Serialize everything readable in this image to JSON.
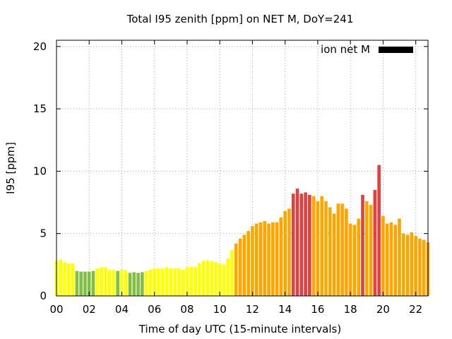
{
  "chart_data": {
    "type": "bar",
    "title": "Total I95 zenith [ppm] on NET M, DoY=241",
    "xlabel": "Time of day UTC (15-minute intervals)",
    "ylabel": "I95 [ppm]",
    "xlim": [
      0,
      22.75
    ],
    "ylim": [
      0,
      20.5
    ],
    "xticks": [
      0,
      2,
      4,
      6,
      8,
      10,
      12,
      14,
      16,
      18,
      20,
      22
    ],
    "xtick_labels": [
      "00",
      "02",
      "04",
      "06",
      "08",
      "10",
      "12",
      "14",
      "16",
      "18",
      "20",
      "22"
    ],
    "yticks": [
      0,
      5,
      10,
      15,
      20
    ],
    "ytick_labels": [
      "0",
      "5",
      "10",
      "15",
      "20"
    ],
    "grid": true,
    "legend": {
      "label": "ion net M",
      "color": "#000000",
      "position": "top-right"
    },
    "bar_width_hours": 0.2,
    "colors": {
      "yellow": "#ffff00",
      "green": "#80c040",
      "orange": "#ffa500",
      "red": "#e04040"
    },
    "x": [
      0.0,
      0.25,
      0.5,
      0.75,
      1.0,
      1.25,
      1.5,
      1.75,
      2.0,
      2.25,
      2.5,
      2.75,
      3.0,
      3.25,
      3.5,
      3.75,
      4.0,
      4.25,
      4.5,
      4.75,
      5.0,
      5.25,
      5.5,
      5.75,
      6.0,
      6.25,
      6.5,
      6.75,
      7.0,
      7.25,
      7.5,
      7.75,
      8.0,
      8.25,
      8.5,
      8.75,
      9.0,
      9.25,
      9.5,
      9.75,
      10.0,
      10.25,
      10.5,
      10.75,
      11.0,
      11.25,
      11.5,
      11.75,
      12.0,
      12.25,
      12.5,
      12.75,
      13.0,
      13.25,
      13.5,
      13.75,
      14.0,
      14.25,
      14.5,
      14.75,
      15.0,
      15.25,
      15.5,
      15.75,
      16.0,
      16.25,
      16.5,
      16.75,
      17.0,
      17.25,
      17.5,
      17.75,
      18.0,
      18.25,
      18.5,
      18.75,
      19.0,
      19.25,
      19.5,
      19.75,
      20.0,
      20.25,
      20.5,
      20.75,
      21.0,
      21.25,
      21.5,
      21.75,
      22.0,
      22.25,
      22.5,
      22.75
    ],
    "values": [
      2.8,
      2.9,
      2.7,
      2.6,
      2.6,
      2.0,
      1.95,
      1.95,
      1.95,
      2.0,
      2.2,
      2.3,
      2.3,
      2.1,
      2.1,
      2.0,
      2.1,
      2.05,
      1.85,
      1.9,
      1.85,
      1.9,
      2.0,
      2.1,
      2.2,
      2.2,
      2.2,
      2.3,
      2.2,
      2.2,
      2.2,
      2.1,
      2.3,
      2.3,
      2.3,
      2.6,
      2.8,
      2.85,
      2.8,
      2.7,
      2.6,
      2.5,
      3.0,
      3.7,
      4.2,
      4.6,
      4.9,
      5.2,
      5.6,
      5.8,
      5.9,
      6.0,
      5.8,
      5.9,
      5.9,
      6.3,
      6.8,
      7.0,
      8.2,
      8.6,
      8.2,
      8.3,
      8.1,
      8.0,
      7.6,
      8.0,
      7.6,
      7.1,
      6.6,
      7.4,
      7.4,
      7.0,
      5.8,
      5.7,
      6.2,
      8.1,
      7.6,
      7.3,
      8.5,
      10.5,
      6.4,
      5.8,
      5.9,
      5.7,
      6.2,
      5.0,
      4.9,
      5.1,
      4.8,
      4.6,
      4.5,
      4.3
    ],
    "bar_colors": [
      "yellow",
      "yellow",
      "yellow",
      "yellow",
      "yellow",
      "green",
      "green",
      "green",
      "green",
      "green",
      "yellow",
      "yellow",
      "yellow",
      "yellow",
      "yellow",
      "green",
      "yellow",
      "yellow",
      "green",
      "green",
      "green",
      "green",
      "yellow",
      "yellow",
      "yellow",
      "yellow",
      "yellow",
      "yellow",
      "yellow",
      "yellow",
      "yellow",
      "yellow",
      "yellow",
      "yellow",
      "yellow",
      "yellow",
      "yellow",
      "yellow",
      "yellow",
      "yellow",
      "yellow",
      "yellow",
      "yellow",
      "yellow",
      "orange",
      "orange",
      "orange",
      "orange",
      "orange",
      "orange",
      "orange",
      "orange",
      "orange",
      "orange",
      "orange",
      "orange",
      "orange",
      "orange",
      "red",
      "red",
      "red",
      "red",
      "red",
      "orange",
      "orange",
      "orange",
      "orange",
      "orange",
      "orange",
      "orange",
      "orange",
      "orange",
      "orange",
      "orange",
      "orange",
      "red",
      "orange",
      "orange",
      "red",
      "red",
      "orange",
      "orange",
      "orange",
      "orange",
      "orange",
      "orange",
      "orange",
      "orange",
      "orange",
      "orange",
      "orange",
      "orange"
    ]
  }
}
